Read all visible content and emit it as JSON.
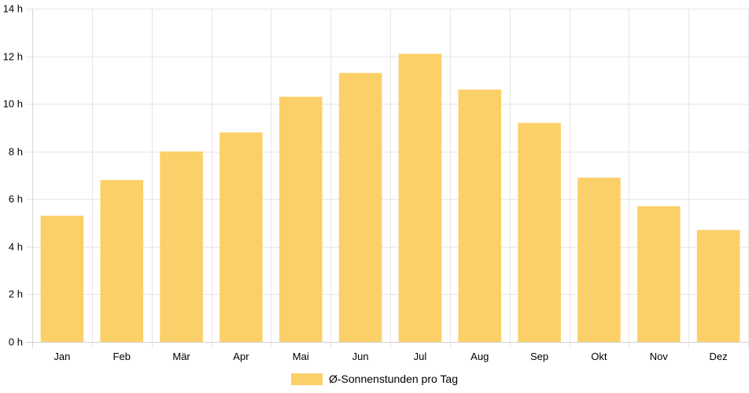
{
  "chart_data": {
    "type": "bar",
    "categories": [
      "Jan",
      "Feb",
      "Mär",
      "Apr",
      "Mai",
      "Jun",
      "Jul",
      "Aug",
      "Sep",
      "Okt",
      "Nov",
      "Dez"
    ],
    "series": [
      {
        "name": "Ø-Sonnenstunden pro Tag",
        "values": [
          5.3,
          6.8,
          8.0,
          8.8,
          10.3,
          11.3,
          12.1,
          10.6,
          9.2,
          6.9,
          5.7,
          4.7
        ],
        "color": "#fcd068"
      }
    ],
    "y_ticks": [
      "0 h",
      "2 h",
      "4 h",
      "6 h",
      "8 h",
      "10 h",
      "12 h",
      "14 h"
    ],
    "ylim": [
      0,
      14
    ],
    "grid": true,
    "legend_position": "bottom"
  }
}
